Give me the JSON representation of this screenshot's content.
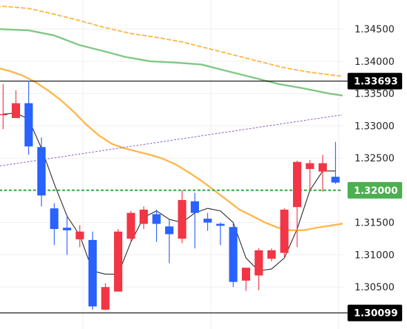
{
  "chart_data": {
    "type": "candlestick",
    "title": "",
    "xlabel": "",
    "ylabel": "",
    "ylim": [
      1.2985,
      1.3495
    ],
    "grid": true,
    "legend": "none",
    "y_ticks": [
      1.345,
      1.34,
      1.335,
      1.33,
      1.325,
      1.315,
      1.31,
      1.305
    ],
    "y_tick_labels": [
      "1.34500",
      "1.34000",
      "1.33500",
      "1.33000",
      "1.32500",
      "1.31500",
      "1.31000",
      "1.30500"
    ],
    "price_levels": [
      {
        "value": 1.33693,
        "label": "1.33693",
        "line_color": "#000000",
        "badge_bg": "#000000",
        "badge_text": "#ffffff",
        "style": "solid"
      },
      {
        "value": 1.30099,
        "label": "1.30099",
        "line_color": "#000000",
        "badge_bg": "#000000",
        "badge_text": "#ffffff",
        "style": "solid"
      },
      {
        "value": 1.32,
        "label": "1.32000",
        "line_color": "#4caf50",
        "badge_bg": "#4caf50",
        "badge_text": "#ffffff",
        "style": "dotted"
      }
    ],
    "colors": {
      "up": "#f23645",
      "down": "#2962ff",
      "grid": "#eeeeee",
      "badge_green": "#4caf50"
    },
    "candles": [
      {
        "o": 1.3318,
        "h": 1.3365,
        "l": 1.3295,
        "c": 1.3318
      },
      {
        "o": 1.3312,
        "h": 1.3355,
        "l": 1.3312,
        "c": 1.3335
      },
      {
        "o": 1.3335,
        "h": 1.337,
        "l": 1.3255,
        "c": 1.3268
      },
      {
        "o": 1.3267,
        "h": 1.3282,
        "l": 1.3175,
        "c": 1.3192
      },
      {
        "o": 1.3172,
        "h": 1.318,
        "l": 1.3115,
        "c": 1.314
      },
      {
        "o": 1.3142,
        "h": 1.3162,
        "l": 1.31,
        "c": 1.3138
      },
      {
        "o": 1.3124,
        "h": 1.3146,
        "l": 1.3112,
        "c": 1.3136
      },
      {
        "o": 1.3123,
        "h": 1.3136,
        "l": 1.3015,
        "c": 1.302
      },
      {
        "o": 1.3015,
        "h": 1.3056,
        "l": 1.3014,
        "c": 1.305
      },
      {
        "o": 1.3043,
        "h": 1.314,
        "l": 1.3043,
        "c": 1.3136
      },
      {
        "o": 1.3125,
        "h": 1.3168,
        "l": 1.312,
        "c": 1.3165
      },
      {
        "o": 1.3148,
        "h": 1.3175,
        "l": 1.314,
        "c": 1.317
      },
      {
        "o": 1.3163,
        "h": 1.317,
        "l": 1.312,
        "c": 1.3148
      },
      {
        "o": 1.3144,
        "h": 1.3155,
        "l": 1.3087,
        "c": 1.3132
      },
      {
        "o": 1.3125,
        "h": 1.32,
        "l": 1.3118,
        "c": 1.3185
      },
      {
        "o": 1.3183,
        "h": 1.3196,
        "l": 1.311,
        "c": 1.3165
      },
      {
        "o": 1.3156,
        "h": 1.3165,
        "l": 1.3137,
        "c": 1.315
      },
      {
        "o": 1.3148,
        "h": 1.315,
        "l": 1.3115,
        "c": 1.3145
      },
      {
        "o": 1.3143,
        "h": 1.315,
        "l": 1.305,
        "c": 1.3058
      },
      {
        "o": 1.306,
        "h": 1.308,
        "l": 1.3044,
        "c": 1.308
      },
      {
        "o": 1.3068,
        "h": 1.311,
        "l": 1.3045,
        "c": 1.3107
      },
      {
        "o": 1.3094,
        "h": 1.311,
        "l": 1.309,
        "c": 1.3107
      },
      {
        "o": 1.3103,
        "h": 1.3172,
        "l": 1.3096,
        "c": 1.317
      },
      {
        "o": 1.3174,
        "h": 1.3246,
        "l": 1.3112,
        "c": 1.3244
      },
      {
        "o": 1.3233,
        "h": 1.3247,
        "l": 1.3198,
        "c": 1.3242
      },
      {
        "o": 1.3229,
        "h": 1.3255,
        "l": 1.3198,
        "c": 1.3242
      },
      {
        "o": 1.3221,
        "h": 1.3275,
        "l": 1.321,
        "c": 1.3212
      }
    ],
    "series": [
      {
        "type": "line",
        "color": "#333333",
        "width": 1.2,
        "dash": "",
        "values": [
          1.3318,
          1.332,
          1.331,
          1.3265,
          1.321,
          1.316,
          1.313,
          1.3075,
          1.307,
          1.307,
          1.312,
          1.3158,
          1.3168,
          1.3155,
          1.315,
          1.3165,
          1.3172,
          1.3168,
          1.315,
          1.3095,
          1.3075,
          1.3078,
          1.3095,
          1.314,
          1.32,
          1.323,
          1.323
        ]
      },
      {
        "type": "ma",
        "color": "#ffb74d",
        "width": 2.5,
        "dash": "",
        "points": [
          [
            -0.5,
            1.339
          ],
          [
            0.5,
            1.3385
          ],
          [
            1.5,
            1.3378
          ],
          [
            2.5,
            1.3368
          ],
          [
            3.5,
            1.3355
          ],
          [
            4.5,
            1.334
          ],
          [
            5.5,
            1.3322
          ],
          [
            6.5,
            1.3302
          ],
          [
            7.5,
            1.3285
          ],
          [
            8.5,
            1.3272
          ],
          [
            9.5,
            1.3265
          ],
          [
            10.5,
            1.326
          ],
          [
            11.5,
            1.3255
          ],
          [
            12.5,
            1.3249
          ],
          [
            13.5,
            1.324
          ],
          [
            14.5,
            1.3228
          ],
          [
            15.5,
            1.3215
          ],
          [
            16.5,
            1.32
          ],
          [
            17.5,
            1.3185
          ],
          [
            18.5,
            1.317
          ],
          [
            19.5,
            1.316
          ],
          [
            20.5,
            1.315
          ],
          [
            21.5,
            1.3142
          ],
          [
            22.5,
            1.3138
          ],
          [
            23.5,
            1.3138
          ],
          [
            24.5,
            1.3142
          ],
          [
            25.5,
            1.3145
          ],
          [
            26.5,
            1.3148
          ]
        ]
      },
      {
        "type": "ma",
        "color": "#81c784",
        "width": 2.5,
        "dash": "",
        "points": [
          [
            -0.5,
            1.345
          ],
          [
            2.0,
            1.3448
          ],
          [
            4.0,
            1.344
          ],
          [
            6.0,
            1.3425
          ],
          [
            8.0,
            1.3415
          ],
          [
            9.5,
            1.3407
          ],
          [
            11.5,
            1.34
          ],
          [
            13.5,
            1.3398
          ],
          [
            15.5,
            1.3395
          ],
          [
            17.5,
            1.3385
          ],
          [
            19.5,
            1.3375
          ],
          [
            21.5,
            1.3365
          ],
          [
            23.5,
            1.3358
          ],
          [
            25.5,
            1.335
          ],
          [
            26.5,
            1.3347
          ]
        ]
      },
      {
        "type": "ma",
        "color": "#ffb74d",
        "width": 2,
        "dash": "5,4",
        "points": [
          [
            -0.5,
            1.3486
          ],
          [
            2.0,
            1.3482
          ],
          [
            4.0,
            1.3473
          ],
          [
            6.0,
            1.3463
          ],
          [
            8.0,
            1.3452
          ],
          [
            10.0,
            1.3443
          ],
          [
            12.0,
            1.3437
          ],
          [
            14.0,
            1.343
          ],
          [
            16.0,
            1.342
          ],
          [
            18.0,
            1.341
          ],
          [
            20.0,
            1.34
          ],
          [
            22.0,
            1.339
          ],
          [
            24.0,
            1.3383
          ],
          [
            26.0,
            1.3378
          ],
          [
            26.5,
            1.3377
          ]
        ]
      },
      {
        "type": "trend",
        "color": "#7e57c2",
        "width": 1,
        "dash": "2,3",
        "points": [
          [
            -0.5,
            1.3237
          ],
          [
            26.5,
            1.3317
          ]
        ]
      }
    ]
  }
}
